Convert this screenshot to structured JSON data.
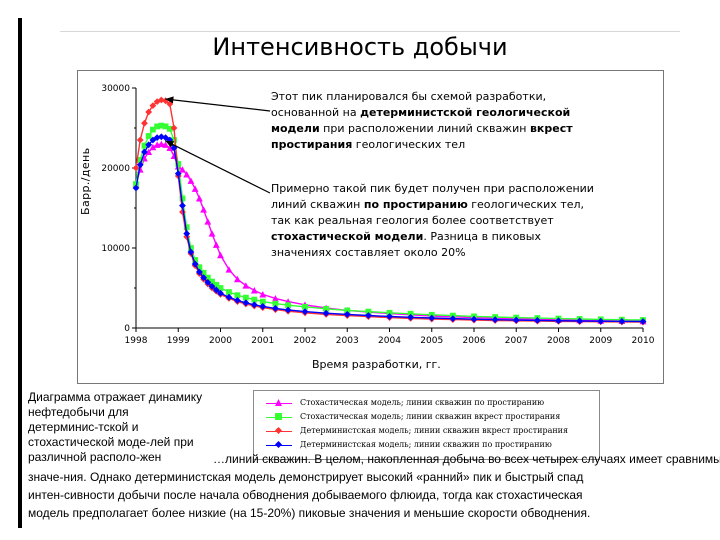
{
  "title": "Интенсивность добычи",
  "annotations": {
    "peak_top": {
      "line1": "Этот пик планировался бы схемой разработки,",
      "line2_pre": "основанной на ",
      "line2_bold": "детерминистской геологической",
      "line3_bold": "модели",
      "line3_mid": " при расположении линий скважин ",
      "line3_bold2": "вкрест",
      "line4_bold": "простирания",
      "line4_post": " геологических тел"
    },
    "peak_low": {
      "line1": "Примерно такой пик будет получен при расположении",
      "line2_pre": "линий скважин ",
      "line2_bold": "по простиранию",
      "line2_post": " геологических тел,",
      "line3": "так как реальная геология более соответствует",
      "line4_bold": "стохастической модели",
      "line4_post": ". Разница в пиковых",
      "line5": "значениях составляет около 20%"
    }
  },
  "caption_left": [
    "Диаграмма отражает динамику",
    "нефтедобычи для",
    "детерминис-тской и",
    "стохастической моде-лей при",
    "различной располо-жен"
  ],
  "caption_bottom": [
    "…линий скважин. В целом, накопленная добыча во всех четырех случаях имеет сравнимые",
    "значе-ния. Однако детерминистская модель демонстрирует высокий «ранний» пик и быстрый спад",
    "интен-сивности добычи после начала обводнения добываемого флюида, тогда как стохастическая",
    "модель предполагает более низкие (на 15-20%) пиковые значения и меньшие скорости обводнения."
  ],
  "chart_data": {
    "type": "line",
    "title": "Интенсивность добычи",
    "xlabel": "Время разработки, гг.",
    "ylabel": "Барр./день",
    "xlim": [
      1998,
      2010
    ],
    "ylim": [
      0,
      30000
    ],
    "x_ticks": [
      "1998",
      "1999",
      "2000",
      "2001",
      "2002",
      "2003",
      "2004",
      "2005",
      "2006",
      "2007",
      "2008",
      "2009",
      "2010"
    ],
    "y_ticks": [
      "0",
      "10000",
      "20000",
      "30000"
    ],
    "grid": false,
    "legend_placement": "bottom-right",
    "series": [
      {
        "name": "Стохастическая модель; линии скважин по простиранию",
        "color": "#ff00ff",
        "marker": "triangle",
        "x": [
          1998.0,
          1998.1,
          1998.2,
          1998.3,
          1998.4,
          1998.5,
          1998.6,
          1998.7,
          1998.8,
          1998.9,
          1999.0,
          1999.1,
          1999.2,
          1999.3,
          1999.4,
          1999.5,
          1999.6,
          1999.7,
          1999.8,
          1999.9,
          2000.0,
          2000.2,
          2000.4,
          2000.6,
          2000.8,
          2001.0,
          2001.3,
          2001.6,
          2002.0,
          2002.5,
          2003.0,
          2003.5,
          2004.0,
          2004.5,
          2005.0,
          2005.5,
          2006.0,
          2006.5,
          2007.0,
          2007.5,
          2008.0,
          2008.5,
          2009.0,
          2009.5,
          2010.0
        ],
        "y": [
          18000,
          19800,
          21200,
          22000,
          22600,
          22900,
          23000,
          22900,
          22500,
          21500,
          20200,
          19800,
          19200,
          18400,
          17400,
          16200,
          14800,
          13300,
          11800,
          10400,
          9100,
          7300,
          6100,
          5300,
          4700,
          4200,
          3700,
          3300,
          2900,
          2500,
          2200,
          2000,
          1800,
          1650,
          1500,
          1400,
          1300,
          1200,
          1150,
          1080,
          1020,
          970,
          920,
          880,
          850
        ]
      },
      {
        "name": "Стохастическая модель; линии скважин вкрест простирания",
        "color": "#33ff33",
        "marker": "square",
        "x": [
          1998.0,
          1998.1,
          1998.2,
          1998.3,
          1998.4,
          1998.5,
          1998.6,
          1998.7,
          1998.8,
          1998.9,
          1999.0,
          1999.1,
          1999.2,
          1999.3,
          1999.4,
          1999.5,
          1999.6,
          1999.7,
          1999.8,
          1999.9,
          2000.0,
          2000.2,
          2000.4,
          2000.6,
          2000.8,
          2001.0,
          2001.3,
          2001.6,
          2002.0,
          2002.5,
          2003.0,
          2003.5,
          2004.0,
          2004.5,
          2005.0,
          2005.5,
          2006.0,
          2006.5,
          2007.0,
          2007.5,
          2008.0,
          2008.5,
          2009.0,
          2009.5,
          2010.0
        ],
        "y": [
          18000,
          21000,
          22800,
          24000,
          24800,
          25200,
          25300,
          25200,
          24900,
          23500,
          20500,
          16200,
          12600,
          10000,
          8500,
          7600,
          6900,
          6300,
          5800,
          5400,
          5000,
          4500,
          4100,
          3800,
          3550,
          3300,
          3050,
          2850,
          2650,
          2400,
          2200,
          2050,
          1900,
          1780,
          1650,
          1550,
          1450,
          1370,
          1300,
          1240,
          1180,
          1130,
          1080,
          1040,
          1000
        ]
      },
      {
        "name": "Детерминистская модель; линии скважин вкрест простирания",
        "color": "#ff3333",
        "marker": "diamond",
        "x": [
          1998.0,
          1998.1,
          1998.2,
          1998.3,
          1998.4,
          1998.5,
          1998.6,
          1998.7,
          1998.8,
          1998.9,
          1999.0,
          1999.1,
          1999.2,
          1999.3,
          1999.4,
          1999.5,
          1999.6,
          1999.7,
          1999.8,
          1999.9,
          2000.0,
          2000.2,
          2000.4,
          2000.6,
          2000.8,
          2001.0,
          2001.3,
          2001.6,
          2002.0,
          2002.5,
          2003.0,
          2003.5,
          2004.0,
          2004.5,
          2005.0,
          2005.5,
          2006.0,
          2006.5,
          2007.0,
          2007.5,
          2008.0,
          2008.5,
          2009.0,
          2009.5,
          2010.0
        ],
        "y": [
          20000,
          23500,
          25600,
          27000,
          27800,
          28300,
          28500,
          28400,
          28000,
          25000,
          19000,
          14500,
          11400,
          9300,
          7800,
          6800,
          6100,
          5500,
          5000,
          4600,
          4200,
          3700,
          3300,
          3000,
          2750,
          2550,
          2300,
          2100,
          1900,
          1700,
          1550,
          1420,
          1300,
          1200,
          1120,
          1050,
          990,
          940,
          900,
          860,
          830,
          800,
          780,
          760,
          740
        ]
      },
      {
        "name": "Детерминистская модель; линии скважин по простиранию",
        "color": "#0000ff",
        "marker": "diamond",
        "x": [
          1998.0,
          1998.1,
          1998.2,
          1998.3,
          1998.4,
          1998.5,
          1998.6,
          1998.7,
          1998.8,
          1998.9,
          1999.0,
          1999.1,
          1999.2,
          1999.3,
          1999.4,
          1999.5,
          1999.6,
          1999.7,
          1999.8,
          1999.9,
          2000.0,
          2000.2,
          2000.4,
          2000.6,
          2000.8,
          2001.0,
          2001.3,
          2001.6,
          2002.0,
          2002.5,
          2003.0,
          2003.5,
          2004.0,
          2004.5,
          2005.0,
          2005.5,
          2006.0,
          2006.5,
          2007.0,
          2007.5,
          2008.0,
          2008.5,
          2009.0,
          2009.5,
          2010.0
        ],
        "y": [
          17500,
          20400,
          22000,
          22900,
          23500,
          23800,
          23900,
          23800,
          23500,
          22500,
          19300,
          15300,
          11800,
          9500,
          8000,
          7000,
          6300,
          5700,
          5200,
          4750,
          4350,
          3850,
          3450,
          3150,
          2900,
          2700,
          2450,
          2250,
          2050,
          1850,
          1700,
          1560,
          1440,
          1340,
          1250,
          1170,
          1100,
          1040,
          990,
          950,
          910,
          880,
          850,
          830,
          810
        ]
      }
    ]
  }
}
